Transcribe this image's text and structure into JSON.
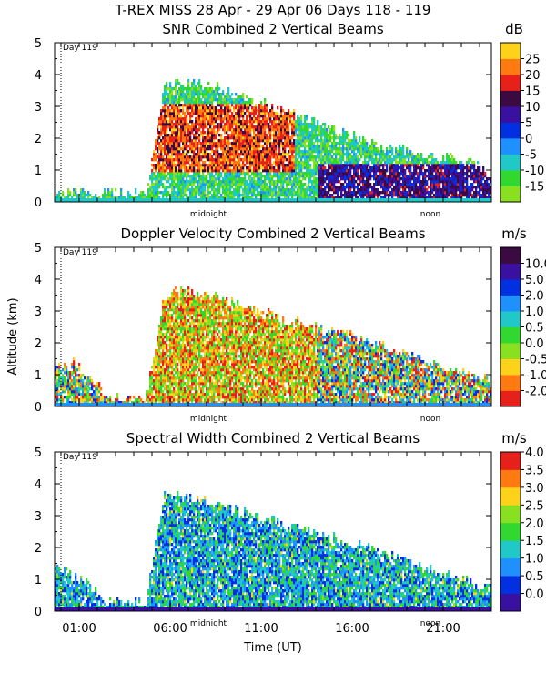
{
  "figure": {
    "title": "T-REX MISS   28 Apr - 29 Apr 06 Days 118 - 119",
    "ylabel": "Altitude (km)",
    "xlabel": "Time (UT)",
    "x_tick_labels": [
      "01:00",
      "06:00",
      "11:00",
      "16:00",
      "21:00"
    ],
    "marker_labels": [
      "midnight",
      "noon"
    ],
    "day_marker": "Day 119"
  },
  "chart_data": [
    {
      "type": "heatmap",
      "title": "SNR Combined 2 Vertical Beams",
      "unit": "dB",
      "ylim": [
        0,
        5
      ],
      "y_ticks": [
        "0",
        "1",
        "2",
        "3",
        "4",
        "5"
      ],
      "colorbar_ticks": [
        "-15",
        "-10",
        "-5",
        "0",
        "5",
        "10",
        "15",
        "20",
        "25"
      ],
      "colors": [
        "#88e020",
        "#30d830",
        "#20c8c8",
        "#1e90ff",
        "#0030e0",
        "#3a10a0",
        "#3a0a40",
        "#e8201a",
        "#ff7a10",
        "#ffd21a"
      ],
      "echo_top_km": [
        0.3,
        0.3,
        0.3,
        0.3,
        0.3,
        0.3,
        3.7,
        3.8,
        3.75,
        3.6,
        3.4,
        3.2,
        3.0,
        2.8,
        2.6,
        2.4,
        2.2,
        2.0,
        1.8,
        1.7,
        1.6,
        1.5,
        1.4,
        1.3,
        0.9
      ]
    },
    {
      "type": "heatmap",
      "title": "Doppler Velocity Combined 2 Vertical Beams",
      "unit": "m/s",
      "ylim": [
        0,
        5
      ],
      "y_ticks": [
        "0",
        "1",
        "2",
        "3",
        "4",
        "5"
      ],
      "colorbar_ticks": [
        "-2.0",
        "-1.0",
        "-0.5",
        "0.0",
        "0.5",
        "1.0",
        "2.0",
        "5.0",
        "10.0"
      ],
      "colors": [
        "#e8201a",
        "#ff7a10",
        "#ffd21a",
        "#88e020",
        "#30d830",
        "#20c8c8",
        "#1e90ff",
        "#0030e0",
        "#3a10a0",
        "#3a0a40"
      ],
      "echo_top_km": [
        1.2,
        1.4,
        0.9,
        0.3,
        0.3,
        0.3,
        3.6,
        3.7,
        3.6,
        3.5,
        3.3,
        3.1,
        2.9,
        2.7,
        2.6,
        2.4,
        2.3,
        2.1,
        2.0,
        1.8,
        1.6,
        1.4,
        1.2,
        1.0,
        0.8
      ]
    },
    {
      "type": "heatmap",
      "title": "Spectral Width Combined 2 Vertical Beams",
      "unit": "m/s",
      "ylim": [
        0,
        5
      ],
      "y_ticks": [
        "0",
        "1",
        "2",
        "3",
        "4",
        "5"
      ],
      "colorbar_ticks": [
        "0.0",
        "0.5",
        "1.0",
        "1.5",
        "2.0",
        "2.5",
        "3.0",
        "3.5",
        "4.0"
      ],
      "colors": [
        "#3a10a0",
        "#0030e0",
        "#1e90ff",
        "#20c8c8",
        "#30d830",
        "#88e020",
        "#ffd21a",
        "#ff7a10",
        "#e8201a"
      ],
      "echo_top_km": [
        1.5,
        1.2,
        0.8,
        0.3,
        0.3,
        0.3,
        3.7,
        3.6,
        3.5,
        3.4,
        3.2,
        3.0,
        2.9,
        2.7,
        2.6,
        2.4,
        2.2,
        2.1,
        1.9,
        1.7,
        1.5,
        1.3,
        1.1,
        0.9,
        0.8
      ]
    }
  ]
}
